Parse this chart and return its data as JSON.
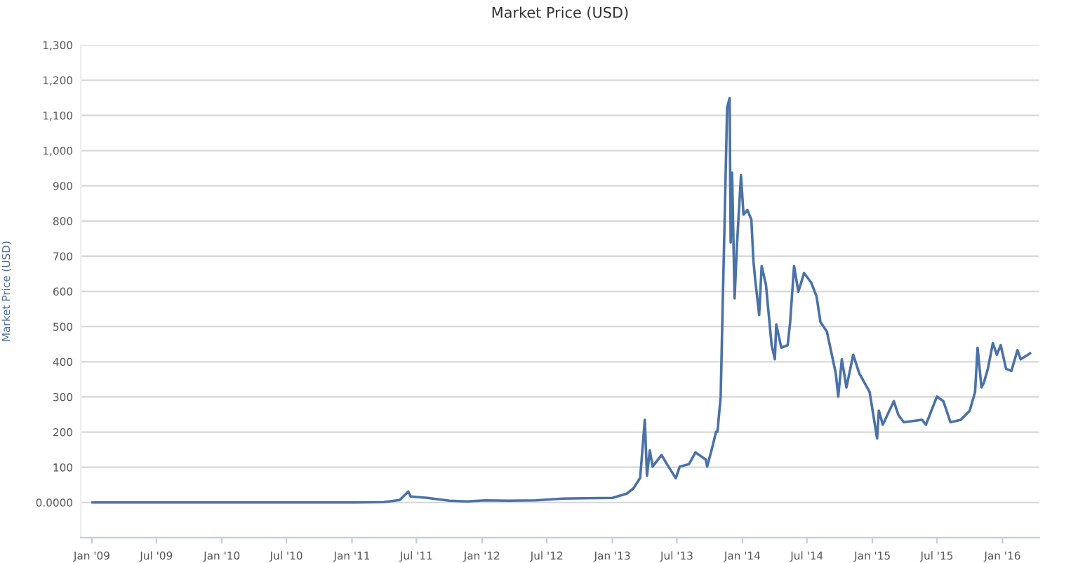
{
  "chart_data": {
    "type": "line",
    "title": "Market Price (USD)",
    "ylabel": "Market Price (USD)",
    "series": [
      {
        "color": "#4a72a8",
        "x": [
          "2009-01-03",
          "2010-07-17",
          "2011-01-01",
          "2011-04-01",
          "2011-05-15",
          "2011-06-08",
          "2011-06-15",
          "2011-08-01",
          "2011-10-01",
          "2011-11-20",
          "2012-01-10",
          "2012-03-15",
          "2012-06-01",
          "2012-08-15",
          "2012-10-15",
          "2013-01-01",
          "2013-02-10",
          "2013-03-01",
          "2013-03-20",
          "2013-04-02",
          "2013-04-08",
          "2013-04-16",
          "2013-04-24",
          "2013-05-19",
          "2013-06-03",
          "2013-06-28",
          "2013-07-09",
          "2013-08-04",
          "2013-08-22",
          "2013-09-20",
          "2013-09-24",
          "2013-10-08",
          "2013-10-19",
          "2013-10-23",
          "2013-11-01",
          "2013-11-07",
          "2013-11-13",
          "2013-11-19",
          "2013-11-26",
          "2013-11-29",
          "2013-12-03",
          "2013-12-10",
          "2013-12-17",
          "2013-12-28",
          "2014-01-04",
          "2014-01-15",
          "2014-01-26",
          "2014-02-01",
          "2014-02-06",
          "2014-02-17",
          "2014-02-24",
          "2014-03-08",
          "2014-03-24",
          "2014-04-02",
          "2014-04-06",
          "2014-04-20",
          "2014-05-08",
          "2014-05-15",
          "2014-05-26",
          "2014-06-07",
          "2014-06-23",
          "2014-07-13",
          "2014-07-28",
          "2014-08-08",
          "2014-08-26",
          "2014-09-09",
          "2014-09-20",
          "2014-09-27",
          "2014-10-07",
          "2014-10-20",
          "2014-11-08",
          "2014-11-25",
          "2014-12-24",
          "2015-01-14",
          "2015-01-19",
          "2015-01-30",
          "2015-03-02",
          "2015-03-15",
          "2015-03-30",
          "2015-05-20",
          "2015-05-31",
          "2015-07-01",
          "2015-07-19",
          "2015-08-08",
          "2015-09-06",
          "2015-10-01",
          "2015-10-16",
          "2015-10-23",
          "2015-11-03",
          "2015-11-10",
          "2015-11-21",
          "2015-12-05",
          "2015-12-16",
          "2015-12-27",
          "2016-01-11",
          "2016-01-26",
          "2016-02-12",
          "2016-02-21",
          "2016-03-13",
          "2016-03-18"
        ],
        "values": [
          0,
          0,
          0,
          1,
          7,
          31,
          17,
          13,
          5,
          3,
          6,
          5,
          6,
          11,
          12,
          13,
          25,
          40,
          70,
          235,
          76,
          148,
          102,
          135,
          109,
          69,
          102,
          109,
          142,
          122,
          102,
          155,
          201,
          201,
          301,
          580,
          844,
          1122,
          1149,
          739,
          937,
          580,
          738,
          930,
          818,
          831,
          804,
          685,
          632,
          533,
          672,
          619,
          447,
          407,
          506,
          440,
          447,
          513,
          672,
          599,
          652,
          625,
          586,
          513,
          486,
          420,
          367,
          301,
          407,
          327,
          420,
          367,
          314,
          182,
          261,
          221,
          288,
          248,
          228,
          235,
          221,
          301,
          288,
          228,
          235,
          261,
          314,
          440,
          327,
          341,
          380,
          453,
          420,
          447,
          380,
          374,
          433,
          407,
          420,
          424
        ]
      }
    ],
    "xlim": [
      "2008-12-01",
      "2016-04-13"
    ],
    "xticks": [
      {
        "value": "2009-01-01",
        "label": "Jan '09"
      },
      {
        "value": "2009-07-01",
        "label": "Jul '09"
      },
      {
        "value": "2010-01-01",
        "label": "Jan '10"
      },
      {
        "value": "2010-07-01",
        "label": "Jul '10"
      },
      {
        "value": "2011-01-01",
        "label": "Jan '11"
      },
      {
        "value": "2011-07-01",
        "label": "Jul '11"
      },
      {
        "value": "2012-01-01",
        "label": "Jan '12"
      },
      {
        "value": "2012-07-01",
        "label": "Jul '12"
      },
      {
        "value": "2013-01-01",
        "label": "Jan '13"
      },
      {
        "value": "2013-07-01",
        "label": "Jul '13"
      },
      {
        "value": "2014-01-01",
        "label": "Jan '14"
      },
      {
        "value": "2014-07-01",
        "label": "Jul '14"
      },
      {
        "value": "2015-01-01",
        "label": "Jan '15"
      },
      {
        "value": "2015-07-01",
        "label": "Jul '15"
      },
      {
        "value": "2016-01-01",
        "label": "Jan '16"
      }
    ],
    "ylim": [
      -100,
      1300
    ],
    "yticks": [
      {
        "value": 0,
        "label": "0.0000"
      },
      100,
      200,
      300,
      400,
      500,
      600,
      700,
      800,
      900,
      {
        "value": 1000,
        "label": "1,000"
      },
      {
        "value": 1100,
        "label": "1,100"
      },
      {
        "value": 1200,
        "label": "1,200"
      },
      {
        "value": 1300,
        "label": "1,300"
      }
    ],
    "grid": "y",
    "marker": "none",
    "line_style": "solid"
  }
}
